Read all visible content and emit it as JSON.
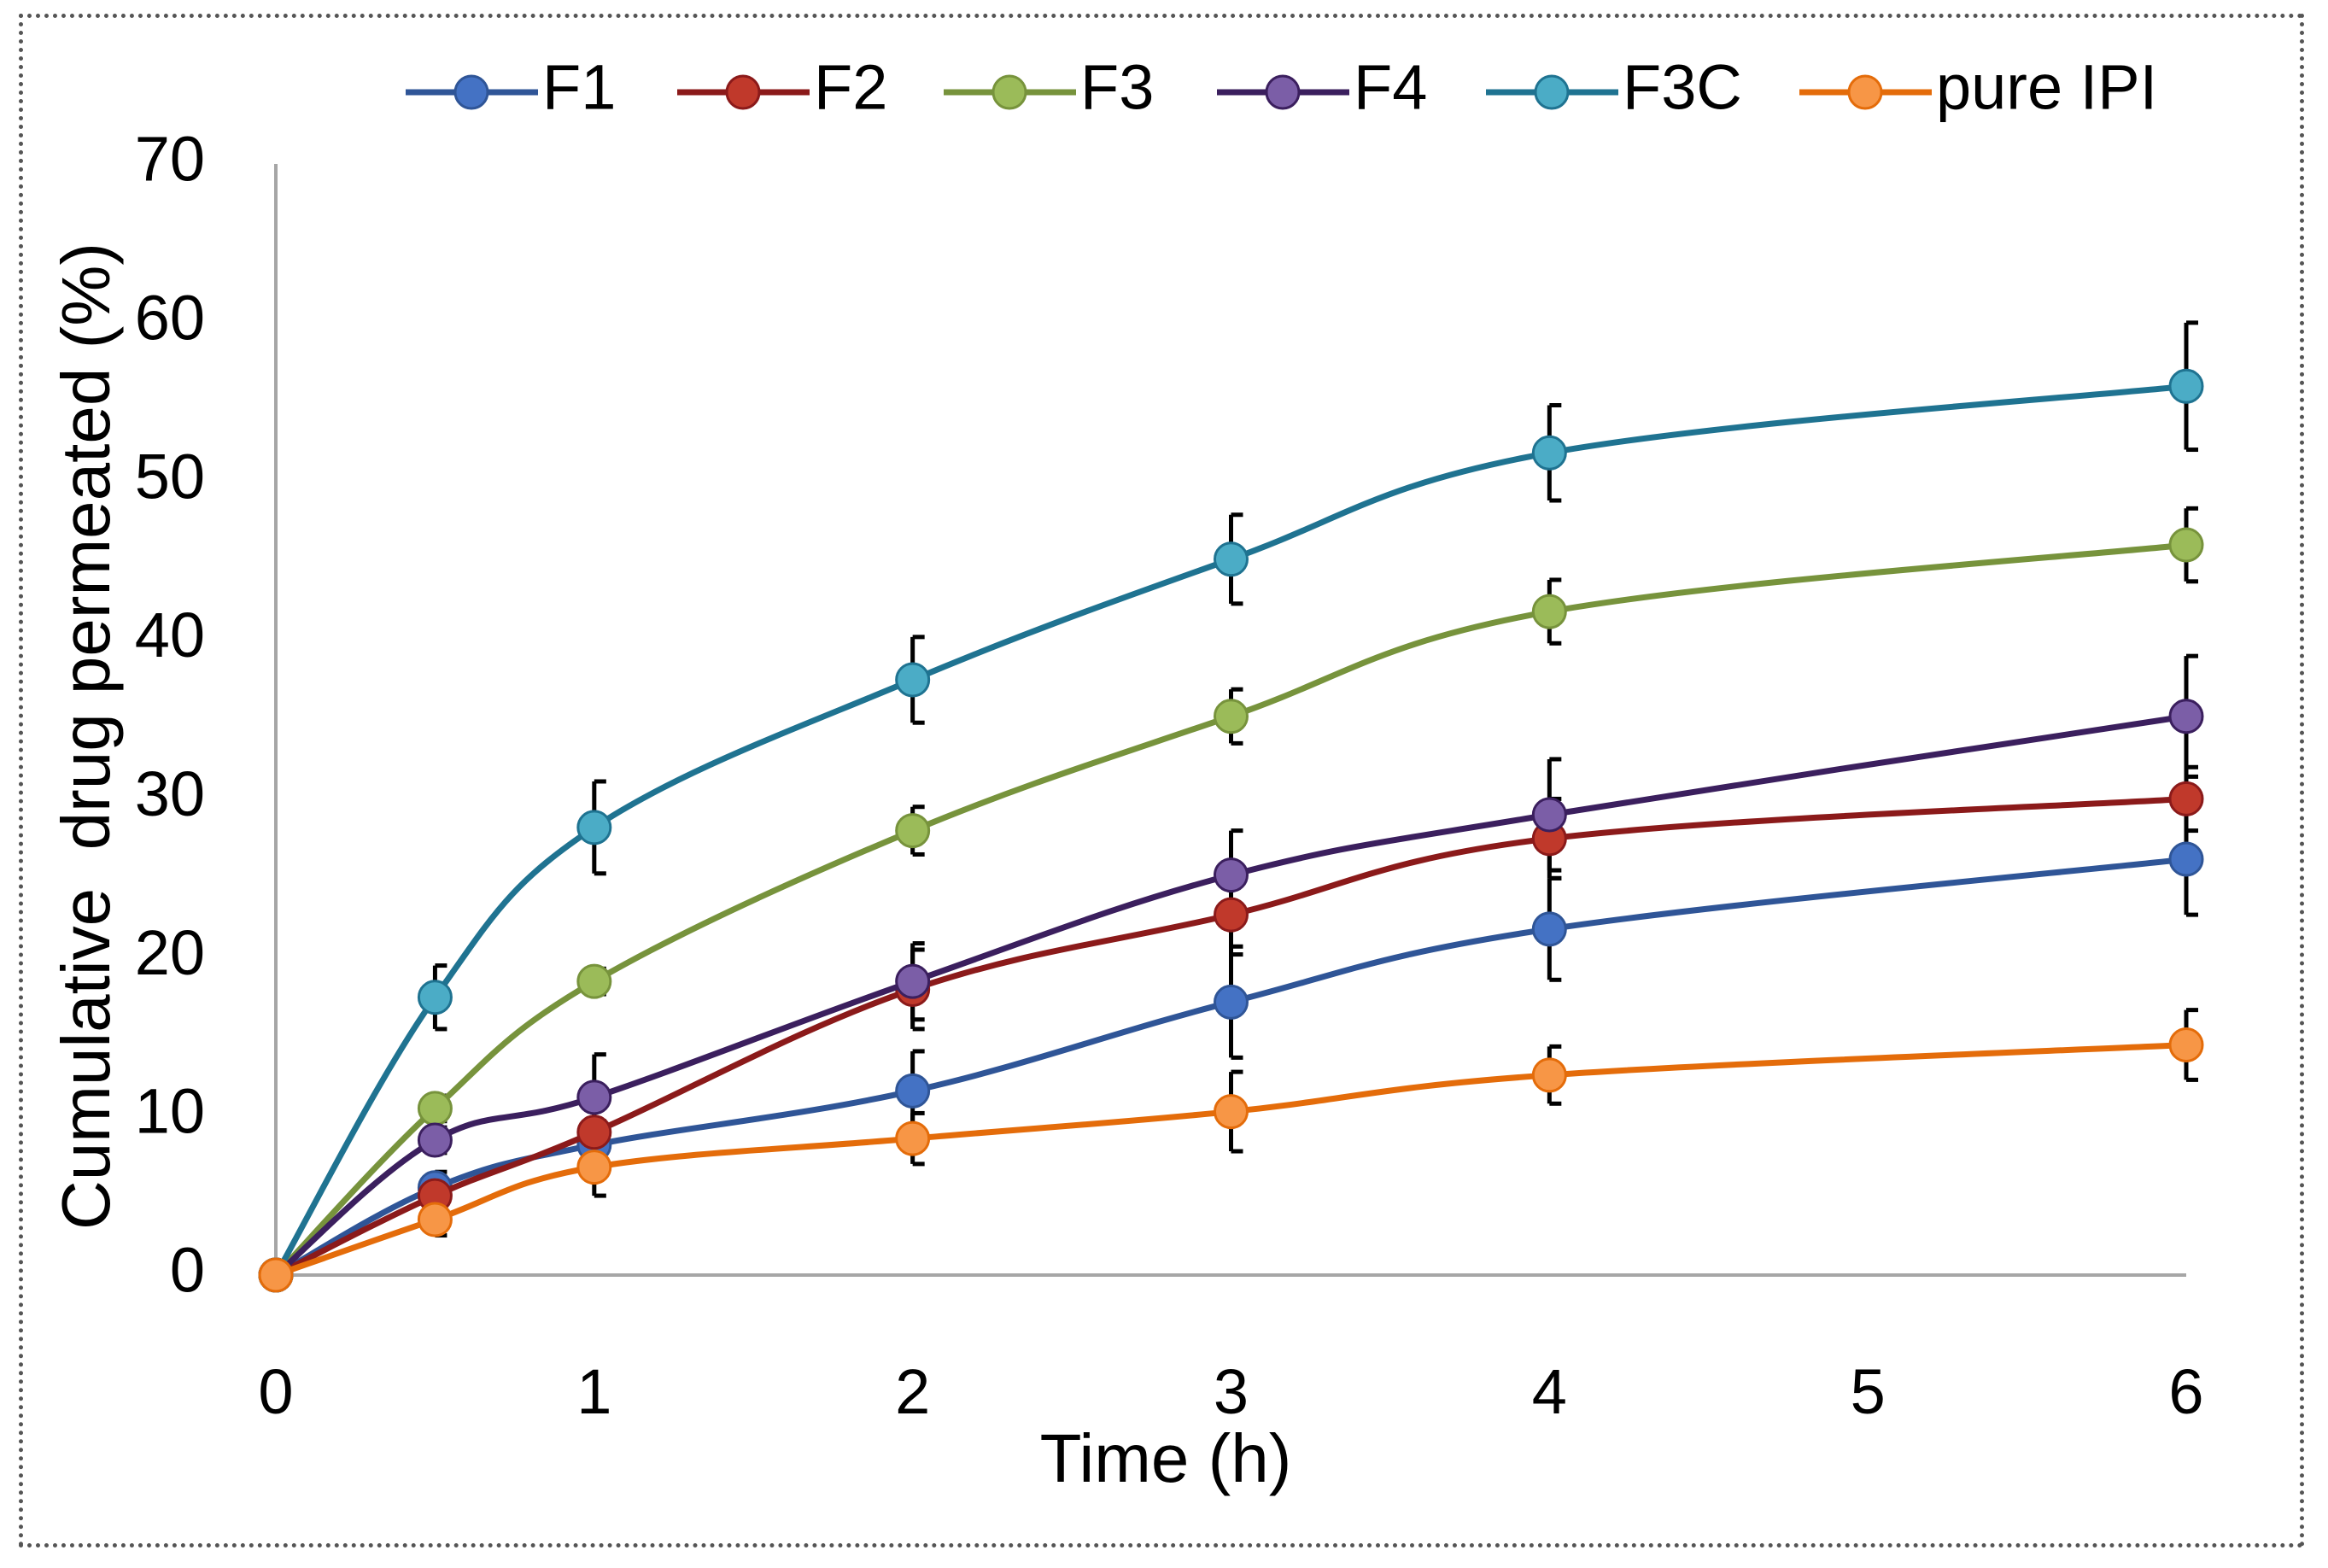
{
  "chart_data": {
    "type": "line",
    "title": "",
    "xlabel": "Time (h)",
    "ylabel": "Cumulative  drug permeated (%)",
    "xlim": [
      0,
      6
    ],
    "ylim": [
      0,
      70
    ],
    "x_ticks": [
      0,
      1,
      2,
      3,
      4,
      5,
      6
    ],
    "y_ticks": [
      0,
      10,
      20,
      30,
      40,
      50,
      60,
      70
    ],
    "grid": false,
    "legend_position": "top",
    "x": [
      0,
      0.5,
      1,
      2,
      3,
      4,
      6
    ],
    "series": [
      {
        "name": "F1",
        "color": "#2f5597",
        "marker_color": "#4472c4",
        "values": [
          0,
          5.5,
          8.2,
          11.6,
          17.2,
          21.8,
          26.2
        ],
        "errors": [
          0,
          1.0,
          1.5,
          2.5,
          3.5,
          3.2,
          3.5
        ]
      },
      {
        "name": "F2",
        "color": "#8b1a1a",
        "marker_color": "#c0392b",
        "values": [
          0,
          5.0,
          9.0,
          18.0,
          22.7,
          27.5,
          30.0
        ],
        "errors": [
          0,
          1.2,
          2.0,
          2.5,
          2.5,
          2.5,
          2.0
        ]
      },
      {
        "name": "F3",
        "color": "#77933c",
        "marker_color": "#9bbb59",
        "values": [
          0,
          10.5,
          18.5,
          28.0,
          35.2,
          41.8,
          46.0
        ],
        "errors": [
          0,
          0.8,
          0.8,
          1.5,
          1.7,
          2.0,
          2.3
        ]
      },
      {
        "name": "F4",
        "color": "#3b1f5e",
        "marker_color": "#7b5ea7",
        "values": [
          0,
          8.5,
          11.2,
          18.5,
          25.2,
          29.0,
          35.2
        ],
        "errors": [
          0,
          0.8,
          2.7,
          2.4,
          2.8,
          3.5,
          3.8
        ]
      },
      {
        "name": "F3C",
        "color": "#1f7391",
        "marker_color": "#4bacc6",
        "values": [
          0,
          17.5,
          28.2,
          37.5,
          45.1,
          51.8,
          56.0
        ],
        "errors": [
          0,
          2.0,
          2.9,
          2.7,
          2.8,
          3.0,
          4.0
        ]
      },
      {
        "name": "pure IPI",
        "color": "#e46c0a",
        "marker_color": "#f79646",
        "values": [
          0,
          3.5,
          6.8,
          8.6,
          10.3,
          12.6,
          14.5
        ],
        "errors": [
          0,
          1.0,
          1.8,
          1.6,
          2.5,
          1.8,
          2.2
        ]
      }
    ]
  }
}
